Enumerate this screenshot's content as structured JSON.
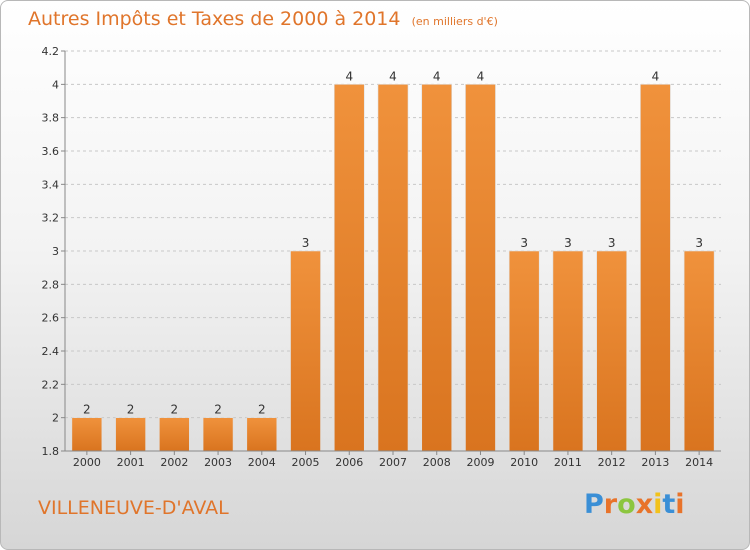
{
  "chart_data": {
    "type": "bar",
    "title": "Autres Impôts et Taxes de 2000 à 2014",
    "unit": "(en milliers d'€)",
    "categories": [
      "2000",
      "2001",
      "2002",
      "2003",
      "2004",
      "2005",
      "2006",
      "2007",
      "2008",
      "2009",
      "2010",
      "2011",
      "2012",
      "2013",
      "2014"
    ],
    "values": [
      2,
      2,
      2,
      2,
      2,
      3,
      4,
      4,
      4,
      4,
      3,
      3,
      3,
      4,
      3
    ],
    "data_labels": [
      "2",
      "2",
      "2",
      "2",
      "2",
      "3",
      "4",
      "4",
      "4",
      "4",
      "3",
      "3",
      "3",
      "4",
      "3"
    ],
    "ylim": [
      1.8,
      4.2
    ],
    "yticks": [
      1.8,
      2,
      2.2,
      2.4,
      2.6,
      2.8,
      3,
      3.2,
      3.4,
      3.6,
      3.8,
      4,
      4.2
    ],
    "ytick_labels": [
      "1.8",
      "2",
      "2.2",
      "2.4",
      "2.6",
      "2.8",
      "3",
      "3.2",
      "3.4",
      "3.6",
      "3.8",
      "4",
      "4.2"
    ],
    "grid": true,
    "bar_color": "#f0923c",
    "bar_color_dark": "#d9741f"
  },
  "commune": "VILLENEUVE-D'AVAL",
  "logo": {
    "letters": [
      "P",
      "r",
      "o",
      "x",
      "i",
      "t",
      "i"
    ],
    "colors": [
      "#3a8fd6",
      "#e8732a",
      "#8cc63f",
      "#e8732a",
      "#f2c21b",
      "#3a8fd6",
      "#e8732a"
    ]
  },
  "colors": {
    "title": "#e0752b",
    "grid": "#c8c8c8"
  }
}
